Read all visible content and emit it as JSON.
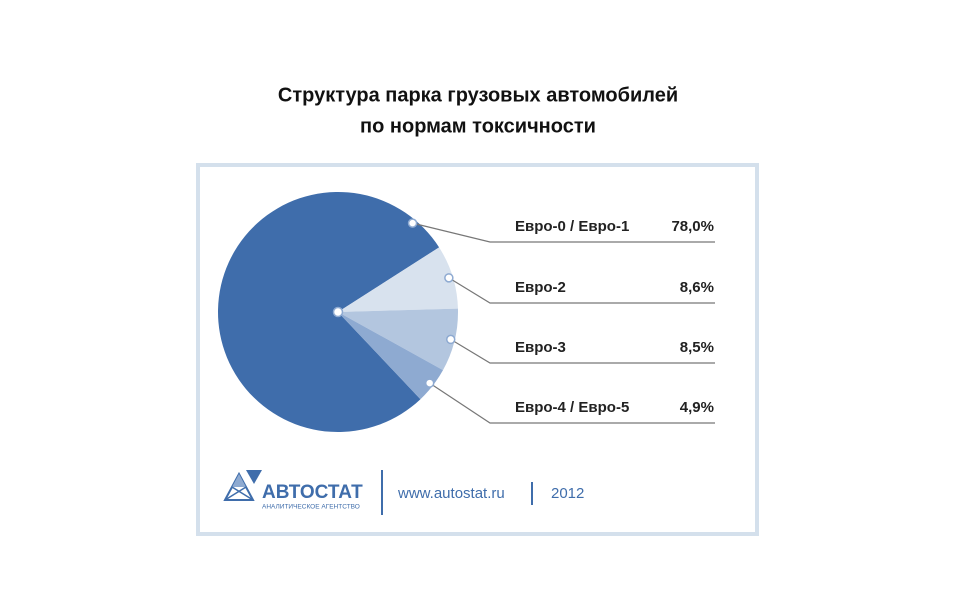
{
  "chart_data": {
    "type": "pie",
    "title": [
      "Структура парка грузовых автомобилей",
      "по нормам токсичности"
    ],
    "categories": [
      "Евро-0 / Евро-1",
      "Евро-2",
      "Евро-3",
      "Евро-4 / Евро-5"
    ],
    "values": [
      78.0,
      8.6,
      8.5,
      4.9
    ],
    "value_labels": [
      "78,0%",
      "8,6%",
      "8,5%",
      "4,9%"
    ],
    "colors": [
      "#3f6dab",
      "#d8e2ee",
      "#b3c6df",
      "#8eaad1"
    ]
  },
  "footer": {
    "brand": "АВТОСТАТ",
    "tagline": "АНАЛИТИЧЕСКОЕ АГЕНТСТВО",
    "url": "www.autostat.ru",
    "year": "2012"
  }
}
